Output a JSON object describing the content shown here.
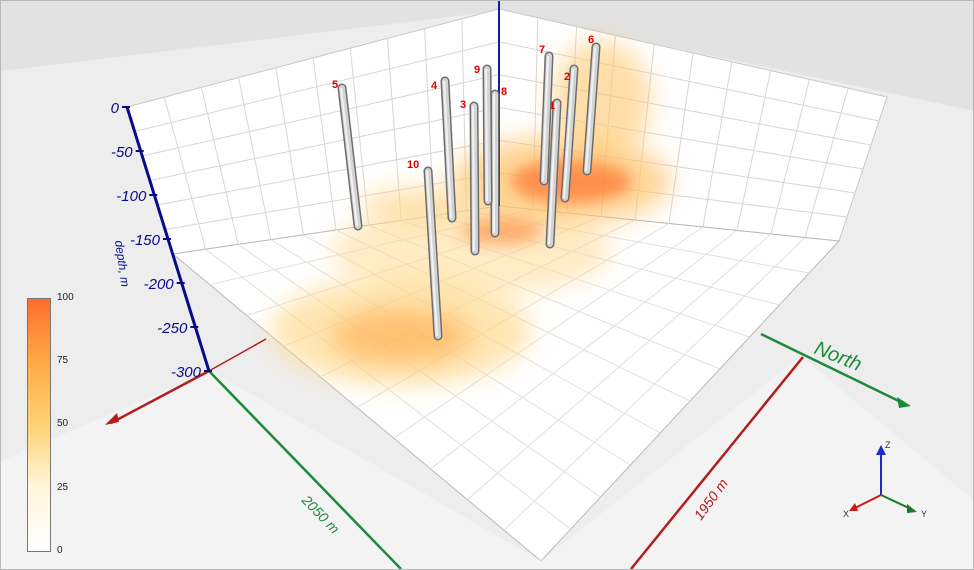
{
  "axes": {
    "depth_ticks": [
      "0",
      "-50",
      "-100",
      "-150",
      "-200",
      "-250",
      "-300"
    ],
    "depth_label": "depth, m",
    "north_label": "North",
    "x_extent": "2050 m",
    "y_extent": "1950 m"
  },
  "wells": [
    {
      "id": "1"
    },
    {
      "id": "2"
    },
    {
      "id": "3"
    },
    {
      "id": "4"
    },
    {
      "id": "5"
    },
    {
      "id": "6"
    },
    {
      "id": "7"
    },
    {
      "id": "8"
    },
    {
      "id": "9"
    },
    {
      "id": "10"
    }
  ],
  "legend": {
    "ticks": [
      "100",
      "75",
      "50",
      "25",
      "0"
    ],
    "gradient": [
      "#ffffff",
      "#fff6dc",
      "#ffd274",
      "#ffaa45",
      "#ff6e2c"
    ]
  },
  "triad": {
    "z": "Z",
    "x": "X",
    "y": "Y"
  },
  "colors": {
    "depth_axis": "#0a0a8c",
    "x_axis": "#b11d1d",
    "y_axis": "#1d8a3a",
    "well_label": "#e00000",
    "hot": "#ff6a2a"
  }
}
